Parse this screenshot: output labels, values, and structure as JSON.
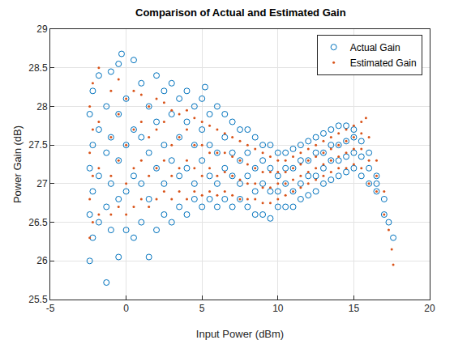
{
  "chart_data": {
    "type": "scatter",
    "title": "Comparison of Actual and Estimated Gain",
    "x_label": "Input Power (dBm)",
    "y_label": "Power Gain (dB)",
    "xlim": [
      -5,
      20
    ],
    "xticks": [
      -5,
      0,
      5,
      10,
      15,
      20
    ],
    "ylim": [
      25.5,
      29
    ],
    "yticks": [
      25.5,
      26,
      26.5,
      27,
      27.5,
      28,
      28.5,
      29
    ],
    "grid": true,
    "legend": "northeast",
    "series": [
      {
        "name": "Actual Gain",
        "color": "#0072BD",
        "marker": "circle-open",
        "x": [
          -2.4,
          -2.4,
          -2.4,
          -2.4,
          -2.2,
          -2.2,
          -2.2,
          -2.2,
          -1.8,
          -1.8,
          -1.8,
          -1.8,
          -1.3,
          -1.3,
          -1.3,
          -1.3,
          -1.0,
          -1.0,
          -1.0,
          -1.0,
          -0.5,
          -0.5,
          -0.5,
          -0.5,
          -0.5,
          -0.3,
          0,
          0,
          0,
          0,
          0.5,
          0.5,
          0.5,
          0.5,
          1.0,
          1.0,
          1.0,
          1.0,
          1.5,
          1.5,
          1.5,
          1.5,
          2.0,
          2.0,
          2.0,
          2.0,
          2.5,
          2.5,
          2.5,
          2.5,
          3.0,
          3.0,
          3.0,
          3.0,
          3.5,
          3.5,
          3.5,
          3.5,
          4.0,
          4.0,
          4.0,
          4.0,
          4.5,
          4.5,
          4.5,
          4.5,
          5.0,
          5.0,
          5.0,
          5.0,
          5.2,
          5.5,
          5.5,
          5.5,
          5.5,
          6.0,
          6.0,
          6.0,
          6.0,
          6.5,
          6.5,
          6.5,
          6.5,
          7.0,
          7.0,
          7.0,
          7.0,
          7.5,
          7.5,
          7.5,
          7.5,
          8.0,
          8.0,
          8.0,
          8.0,
          8.5,
          8.5,
          8.5,
          8.5,
          9.0,
          9.0,
          9.0,
          9.0,
          9.5,
          9.5,
          9.5,
          9.5,
          10.0,
          10.0,
          10.0,
          10.0,
          10.5,
          10.5,
          10.5,
          10.5,
          11.0,
          11.0,
          11.0,
          11.0,
          11.5,
          11.5,
          11.5,
          11.5,
          12.0,
          12.0,
          12.0,
          12.0,
          12.5,
          12.5,
          12.5,
          12.5,
          13.0,
          13.0,
          13.0,
          13.0,
          13.5,
          13.5,
          13.5,
          13.5,
          14.0,
          14.0,
          14.0,
          14.0,
          14.5,
          14.5,
          14.5,
          14.5,
          15.0,
          15.0,
          15.0,
          15.0,
          15.5,
          15.5,
          15.5,
          16.0,
          16.0,
          16.0,
          16.5,
          16.5,
          16.5,
          17.0,
          17.0,
          17.3,
          17.6
        ],
        "values": [
          26.0,
          26.6,
          27.2,
          27.9,
          26.3,
          26.9,
          27.5,
          28.2,
          26.5,
          27.1,
          27.7,
          28.4,
          25.72,
          26.7,
          27.4,
          28.0,
          26.4,
          27.0,
          27.6,
          28.45,
          26.05,
          26.8,
          27.3,
          27.9,
          28.55,
          28.68,
          26.4,
          26.9,
          27.5,
          28.1,
          26.3,
          27.1,
          27.7,
          28.6,
          26.5,
          27.0,
          27.6,
          28.3,
          26.05,
          26.8,
          27.4,
          28.0,
          26.4,
          27.2,
          27.8,
          28.4,
          26.6,
          27.0,
          27.5,
          28.2,
          26.5,
          27.3,
          27.9,
          28.3,
          26.7,
          27.1,
          27.6,
          28.1,
          26.6,
          27.2,
          27.8,
          28.2,
          26.8,
          27.0,
          27.5,
          28.0,
          26.7,
          27.3,
          27.7,
          28.1,
          28.25,
          26.8,
          27.1,
          27.5,
          27.9,
          26.7,
          27.0,
          27.4,
          28.0,
          26.8,
          27.2,
          27.6,
          27.9,
          26.7,
          27.1,
          27.4,
          27.8,
          26.8,
          27.0,
          27.3,
          27.7,
          26.7,
          27.1,
          27.4,
          27.7,
          26.6,
          26.9,
          27.2,
          27.6,
          26.6,
          27.0,
          27.3,
          27.5,
          26.55,
          26.9,
          27.2,
          27.5,
          26.7,
          26.9,
          27.1,
          27.4,
          26.7,
          27.0,
          27.2,
          27.4,
          26.7,
          26.9,
          27.2,
          27.45,
          26.8,
          27.0,
          27.3,
          27.5,
          26.85,
          27.1,
          27.3,
          27.55,
          26.9,
          27.1,
          27.4,
          27.6,
          27.0,
          27.2,
          27.4,
          27.65,
          27.05,
          27.3,
          27.5,
          27.7,
          27.1,
          27.3,
          27.5,
          27.75,
          27.15,
          27.35,
          27.55,
          27.75,
          27.2,
          27.4,
          27.6,
          27.7,
          27.1,
          27.35,
          27.55,
          27.0,
          27.2,
          27.4,
          26.9,
          27.0,
          27.1,
          26.6,
          26.8,
          26.5,
          26.3
        ]
      },
      {
        "name": "Estimated Gain",
        "color": "#D95319",
        "marker": "dot",
        "x": [
          -2.4,
          -2.4,
          -2.4,
          -2.4,
          -2.2,
          -2.2,
          -2.2,
          -2.2,
          -1.8,
          -1.8,
          -1.8,
          -1.8,
          -1.0,
          -1.0,
          -1.0,
          -1.0,
          -0.5,
          -0.5,
          -0.5,
          -0.5,
          0,
          0,
          0,
          0,
          0.5,
          0.5,
          0.5,
          0.5,
          1.0,
          1.0,
          1.0,
          1.0,
          1.5,
          1.5,
          1.5,
          1.5,
          2.0,
          2.0,
          2.0,
          2.0,
          2.5,
          2.5,
          2.5,
          2.5,
          3.0,
          3.0,
          3.0,
          3.0,
          3.5,
          3.5,
          3.5,
          3.5,
          4.0,
          4.0,
          4.0,
          4.0,
          4.5,
          4.5,
          4.5,
          4.5,
          5.0,
          5.0,
          5.0,
          5.0,
          5.5,
          5.5,
          5.5,
          5.5,
          6.0,
          6.0,
          6.0,
          6.0,
          6.5,
          6.5,
          6.5,
          6.5,
          7.0,
          7.0,
          7.0,
          7.0,
          7.5,
          7.5,
          7.5,
          7.5,
          8.0,
          8.0,
          8.0,
          8.0,
          8.5,
          8.5,
          8.5,
          8.5,
          9.0,
          9.0,
          9.0,
          9.0,
          9.5,
          9.5,
          9.5,
          9.5,
          10.0,
          10.0,
          10.0,
          10.0,
          10.5,
          10.5,
          10.5,
          10.5,
          11.0,
          11.0,
          11.0,
          11.0,
          11.5,
          11.5,
          11.5,
          11.5,
          12.0,
          12.0,
          12.0,
          12.0,
          12.5,
          12.5,
          12.5,
          12.5,
          13.0,
          13.0,
          13.0,
          13.0,
          13.5,
          13.5,
          13.5,
          13.5,
          14.0,
          14.0,
          14.0,
          14.0,
          14.5,
          14.5,
          14.5,
          14.5,
          15.0,
          15.0,
          15.0,
          15.0,
          15.5,
          15.5,
          15.5,
          15.5,
          15.8,
          16.0,
          16.0,
          16.0,
          16.5,
          16.5,
          16.5,
          17.0,
          17.0,
          17.3,
          17.5,
          17.6
        ],
        "values": [
          26.3,
          26.8,
          27.4,
          28.0,
          26.5,
          27.1,
          27.7,
          28.3,
          26.6,
          27.2,
          27.8,
          28.5,
          26.6,
          27.1,
          27.6,
          28.2,
          26.7,
          27.3,
          27.9,
          28.35,
          26.6,
          27.0,
          27.5,
          28.1,
          26.7,
          27.2,
          27.7,
          28.2,
          26.8,
          27.3,
          27.8,
          28.15,
          26.7,
          27.1,
          27.6,
          28.0,
          26.8,
          27.2,
          27.7,
          28.1,
          26.9,
          27.3,
          27.8,
          28.05,
          26.8,
          27.1,
          27.5,
          27.95,
          26.9,
          27.2,
          27.6,
          27.9,
          26.8,
          27.3,
          27.7,
          27.95,
          26.9,
          27.2,
          27.5,
          27.85,
          26.85,
          27.1,
          27.5,
          27.8,
          26.9,
          27.2,
          27.4,
          27.75,
          26.85,
          27.1,
          27.4,
          27.7,
          26.9,
          27.15,
          27.4,
          27.65,
          26.85,
          27.1,
          27.35,
          27.6,
          26.8,
          27.05,
          27.3,
          27.55,
          26.8,
          27.0,
          27.25,
          27.5,
          26.8,
          27.0,
          27.2,
          27.45,
          26.75,
          26.95,
          27.15,
          27.4,
          26.75,
          26.95,
          27.15,
          27.35,
          26.8,
          27.0,
          27.15,
          27.3,
          26.85,
          27.0,
          27.15,
          27.3,
          26.9,
          27.05,
          27.2,
          27.35,
          26.95,
          27.1,
          27.25,
          27.4,
          27.0,
          27.15,
          27.3,
          27.45,
          27.05,
          27.2,
          27.35,
          27.5,
          27.1,
          27.25,
          27.4,
          27.55,
          27.15,
          27.3,
          27.45,
          27.6,
          27.2,
          27.35,
          27.5,
          27.65,
          27.2,
          27.4,
          27.55,
          27.7,
          27.25,
          27.45,
          27.6,
          27.75,
          27.2,
          27.45,
          27.65,
          27.8,
          27.85,
          27.0,
          27.3,
          27.6,
          26.9,
          27.1,
          27.3,
          26.6,
          26.9,
          26.4,
          26.15,
          25.95
        ]
      }
    ]
  }
}
